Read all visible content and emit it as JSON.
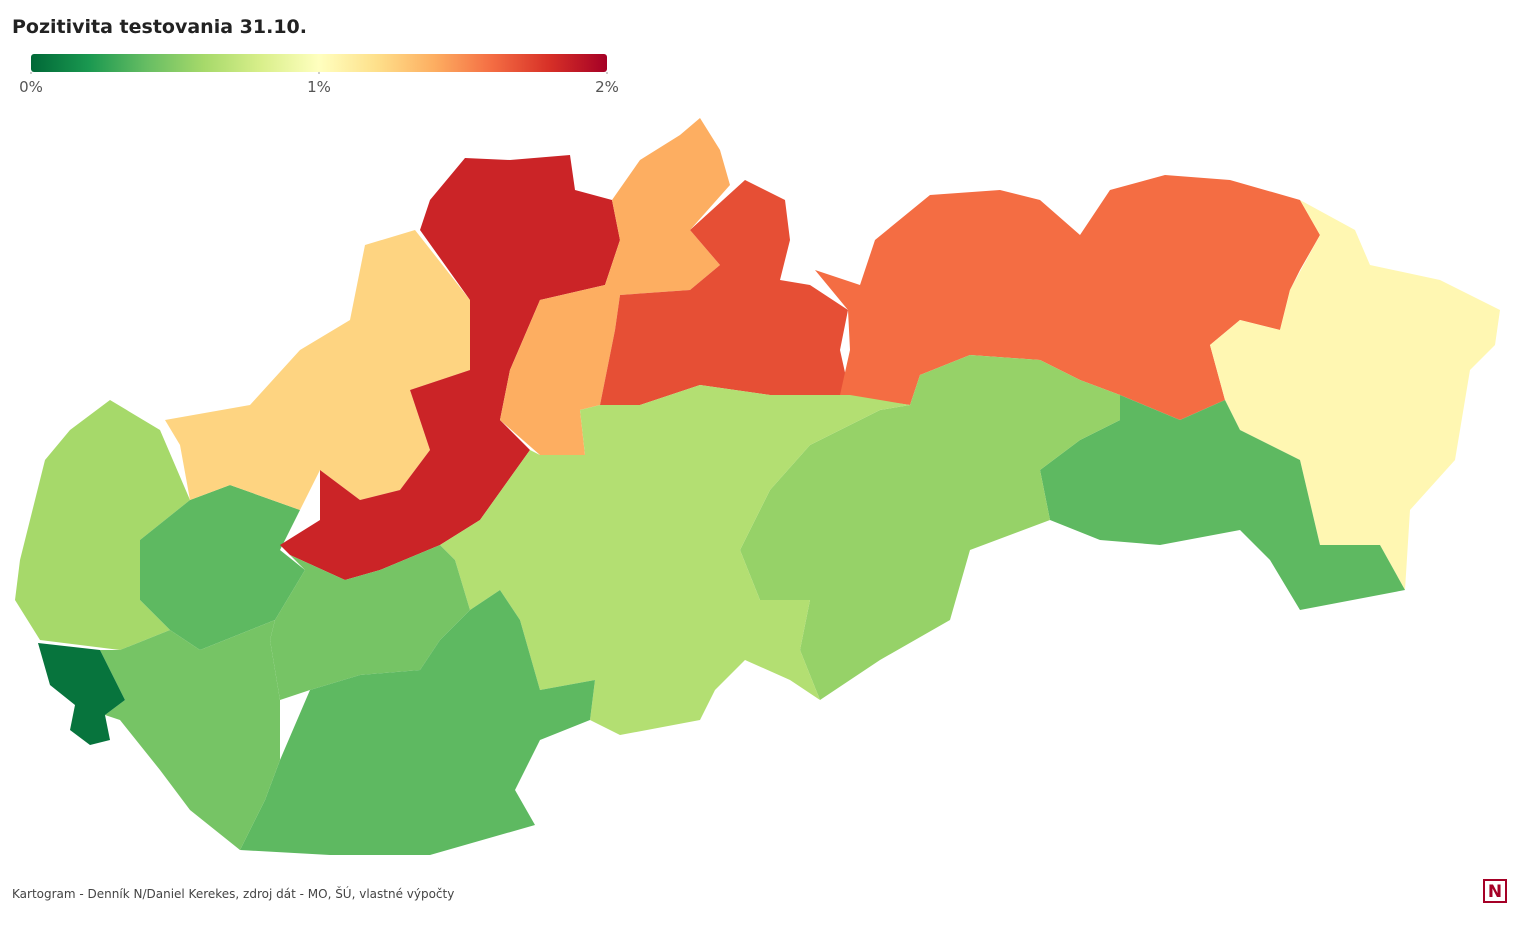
{
  "chart_data": {
    "type": "choropleth",
    "title": "Pozitivita testovania 31.10.",
    "colorscale": [
      "#006837",
      "#1a9850",
      "#66bd63",
      "#a6d96a",
      "#d9ef8b",
      "#ffffbf",
      "#fee08b",
      "#fdae61",
      "#f46d43",
      "#d73027",
      "#a50026"
    ],
    "clim": [
      0,
      2
    ],
    "cticks": [
      {
        "value": 0,
        "label": "0%"
      },
      {
        "value": 1,
        "label": "1%"
      },
      {
        "value": 2,
        "label": "2%"
      }
    ],
    "values": [
      0.05,
      0.6,
      0.38,
      1.25,
      1.85,
      1.85,
      1.4,
      1.7,
      1.6,
      1.05,
      0.38,
      0.55,
      0.65,
      0.45,
      0.38,
      0.45
    ],
    "source": "Kartogram - Denník N/Daniel Kerekes, zdroj dát - MO, ŠÚ, vlastné výpočty",
    "logo": "N"
  }
}
